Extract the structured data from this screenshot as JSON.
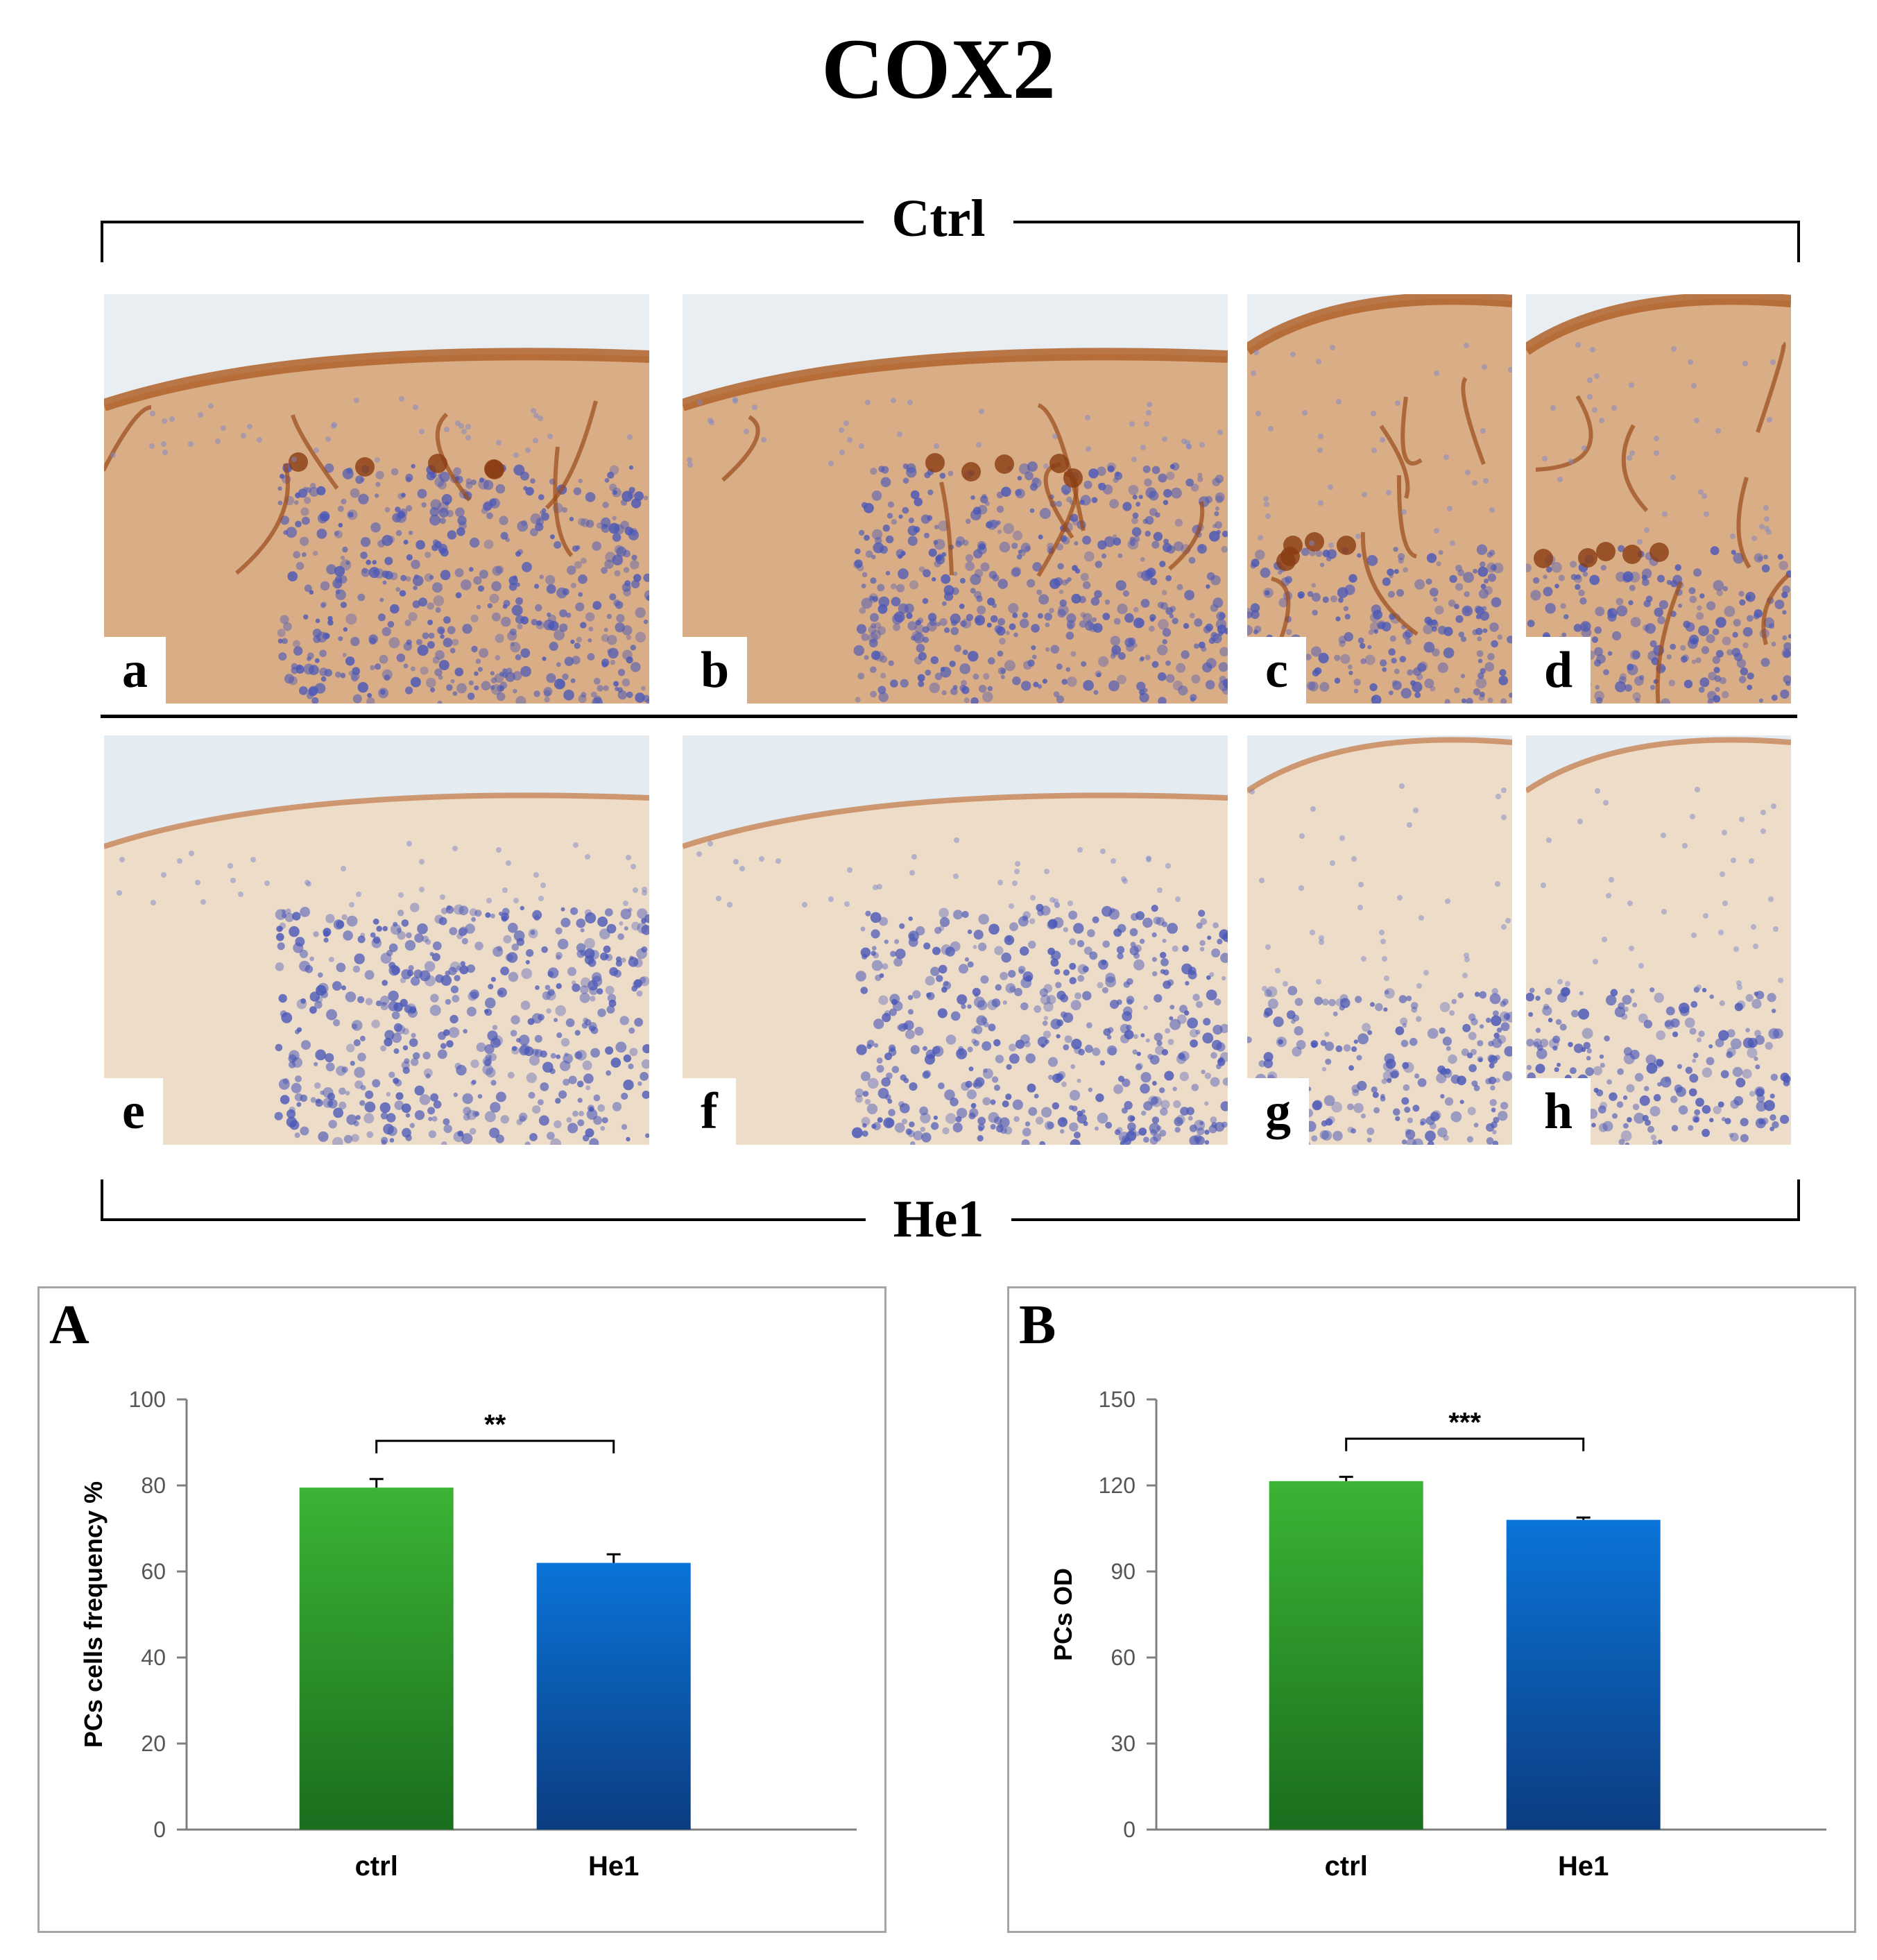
{
  "figure": {
    "title": "COX2",
    "groups": {
      "top": "Ctrl",
      "bottom": "He1"
    }
  },
  "micrographs": [
    {
      "letter": "a",
      "group": "Ctrl",
      "stain": "strong"
    },
    {
      "letter": "b",
      "group": "Ctrl",
      "stain": "strong"
    },
    {
      "letter": "c",
      "group": "Ctrl",
      "stain": "strong"
    },
    {
      "letter": "d",
      "group": "Ctrl",
      "stain": "strong"
    },
    {
      "letter": "e",
      "group": "He1",
      "stain": "weak"
    },
    {
      "letter": "f",
      "group": "He1",
      "stain": "weak"
    },
    {
      "letter": "g",
      "group": "He1",
      "stain": "weak"
    },
    {
      "letter": "h",
      "group": "He1",
      "stain": "weak"
    }
  ],
  "colors": {
    "ctrl_bar_top": "#3cb434",
    "ctrl_bar_bottom": "#1a6e1e",
    "he1_bar_top": "#0a74d8",
    "he1_bar_bottom": "#0c3c80",
    "stain_strong": "#b0622a",
    "stain_weak": "#e2bfa0",
    "nuclei": "#4a58b8",
    "axis_text": "#555555"
  },
  "chart_data": [
    {
      "panel": "A",
      "type": "bar",
      "categories": [
        "ctrl",
        "He1"
      ],
      "values": [
        79.5,
        62
      ],
      "errors": [
        2,
        2
      ],
      "ylabel": "PCs cells frequency %",
      "ylim": [
        0,
        100
      ],
      "yticks": [
        0,
        20,
        40,
        60,
        80,
        100
      ],
      "significance": "**",
      "grid": false
    },
    {
      "panel": "B",
      "type": "bar",
      "categories": [
        "ctrl",
        "He1"
      ],
      "values": [
        121.5,
        108
      ],
      "errors": [
        1.5,
        0.8
      ],
      "ylabel": "PCs OD",
      "ylim": [
        0,
        150
      ],
      "yticks": [
        0,
        30,
        60,
        90,
        120,
        150
      ],
      "significance": "***",
      "grid": false
    }
  ]
}
